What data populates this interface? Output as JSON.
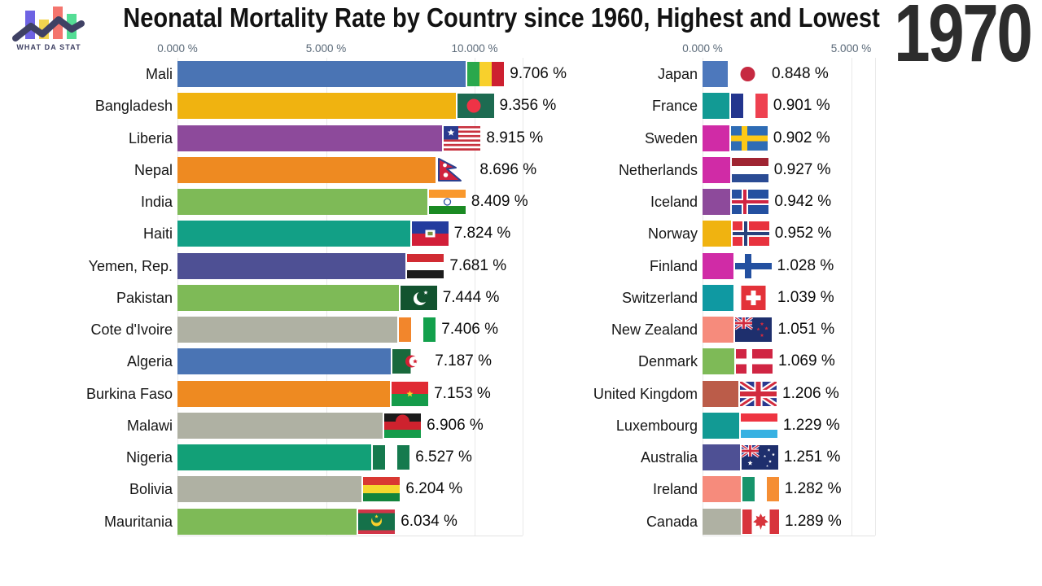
{
  "header": {
    "title": "Neonatal Mortality Rate by Country since 1960, Highest and Lowest",
    "year": "1970",
    "logo_text": "WHAT DA STAT"
  },
  "chart_data": [
    {
      "type": "bar",
      "panel": "highest",
      "orientation": "horizontal",
      "unit": "%",
      "axis": {
        "min": 0,
        "max": 11.6,
        "grid": true,
        "ticks": [
          {
            "value": 0,
            "label": "0.000 %"
          },
          {
            "value": 5,
            "label": "5.000 %"
          },
          {
            "value": 10,
            "label": "10.000 %"
          }
        ]
      },
      "rows": [
        {
          "country": "Mali",
          "value": 9.706,
          "display": "9.706 %",
          "color": "#4a74b4",
          "flag": "mali"
        },
        {
          "country": "Bangladesh",
          "value": 9.356,
          "display": "9.356 %",
          "color": "#f0b310",
          "flag": "bangladesh"
        },
        {
          "country": "Liberia",
          "value": 8.915,
          "display": "8.915 %",
          "color": "#8d4a9b",
          "flag": "liberia"
        },
        {
          "country": "Nepal",
          "value": 8.696,
          "display": "8.696 %",
          "color": "#ee8a21",
          "flag": "nepal"
        },
        {
          "country": "India",
          "value": 8.409,
          "display": "8.409 %",
          "color": "#7eba57",
          "flag": "india"
        },
        {
          "country": "Haiti",
          "value": 7.824,
          "display": "7.824 %",
          "color": "#12a086",
          "flag": "haiti"
        },
        {
          "country": "Yemen, Rep.",
          "value": 7.681,
          "display": "7.681 %",
          "color": "#4e5094",
          "flag": "yemen"
        },
        {
          "country": "Pakistan",
          "value": 7.444,
          "display": "7.444 %",
          "color": "#7eba57",
          "flag": "pakistan"
        },
        {
          "country": "Cote d'Ivoire",
          "value": 7.406,
          "display": "7.406 %",
          "color": "#afb1a3",
          "flag": "cotedivoire"
        },
        {
          "country": "Algeria",
          "value": 7.187,
          "display": "7.187 %",
          "color": "#4a74b4",
          "flag": "algeria"
        },
        {
          "country": "Burkina Faso",
          "value": 7.153,
          "display": "7.153 %",
          "color": "#ee8a21",
          "flag": "burkinafaso"
        },
        {
          "country": "Malawi",
          "value": 6.906,
          "display": "6.906 %",
          "color": "#afb1a3",
          "flag": "malawi"
        },
        {
          "country": "Nigeria",
          "value": 6.527,
          "display": "6.527 %",
          "color": "#12a077",
          "flag": "nigeria"
        },
        {
          "country": "Bolivia",
          "value": 6.204,
          "display": "6.204 %",
          "color": "#afb1a3",
          "flag": "bolivia"
        },
        {
          "country": "Mauritania",
          "value": 6.034,
          "display": "6.034 %",
          "color": "#7eba57",
          "flag": "mauritania"
        }
      ]
    },
    {
      "type": "bar",
      "panel": "lowest",
      "orientation": "horizontal",
      "unit": "%",
      "axis": {
        "min": 0,
        "max": 5.8,
        "grid": true,
        "ticks": [
          {
            "value": 0,
            "label": "0.000 %"
          },
          {
            "value": 5,
            "label": "5.000 %"
          }
        ]
      },
      "rows": [
        {
          "country": "Japan",
          "value": 0.848,
          "display": "0.848 %",
          "color": "#4d78bc",
          "flag": "japan"
        },
        {
          "country": "France",
          "value": 0.901,
          "display": "0.901 %",
          "color": "#129a94",
          "flag": "france"
        },
        {
          "country": "Sweden",
          "value": 0.902,
          "display": "0.902 %",
          "color": "#d02ba6",
          "flag": "sweden"
        },
        {
          "country": "Netherlands",
          "value": 0.927,
          "display": "0.927 %",
          "color": "#d02ba6",
          "flag": "netherlands"
        },
        {
          "country": "Iceland",
          "value": 0.942,
          "display": "0.942 %",
          "color": "#8d4a9b",
          "flag": "iceland"
        },
        {
          "country": "Norway",
          "value": 0.952,
          "display": "0.952 %",
          "color": "#f0b310",
          "flag": "norway"
        },
        {
          "country": "Finland",
          "value": 1.028,
          "display": "1.028 %",
          "color": "#d02ba6",
          "flag": "finland"
        },
        {
          "country": "Switzerland",
          "value": 1.039,
          "display": "1.039 %",
          "color": "#0f99a2",
          "flag": "switzerland"
        },
        {
          "country": "New Zealand",
          "value": 1.051,
          "display": "1.051 %",
          "color": "#f68b7c",
          "flag": "newzealand"
        },
        {
          "country": "Denmark",
          "value": 1.069,
          "display": "1.069 %",
          "color": "#7eba57",
          "flag": "denmark"
        },
        {
          "country": "United Kingdom",
          "value": 1.206,
          "display": "1.206 %",
          "color": "#bb5c49",
          "flag": "uk"
        },
        {
          "country": "Luxembourg",
          "value": 1.229,
          "display": "1.229 %",
          "color": "#129a94",
          "flag": "luxembourg"
        },
        {
          "country": "Australia",
          "value": 1.251,
          "display": "1.251 %",
          "color": "#4e5094",
          "flag": "australia"
        },
        {
          "country": "Ireland",
          "value": 1.282,
          "display": "1.282 %",
          "color": "#f68b7c",
          "flag": "ireland"
        },
        {
          "country": "Canada",
          "value": 1.289,
          "display": "1.289 %",
          "color": "#afb1a3",
          "flag": "canada"
        }
      ]
    }
  ]
}
